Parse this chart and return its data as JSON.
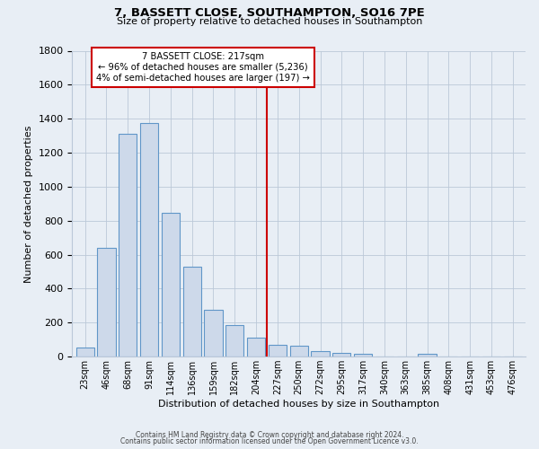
{
  "title": "7, BASSETT CLOSE, SOUTHAMPTON, SO16 7PE",
  "subtitle": "Size of property relative to detached houses in Southampton",
  "xlabel": "Distribution of detached houses by size in Southampton",
  "ylabel": "Number of detached properties",
  "bar_labels": [
    "23sqm",
    "46sqm",
    "68sqm",
    "91sqm",
    "114sqm",
    "136sqm",
    "159sqm",
    "182sqm",
    "204sqm",
    "227sqm",
    "250sqm",
    "272sqm",
    "295sqm",
    "317sqm",
    "340sqm",
    "363sqm",
    "385sqm",
    "408sqm",
    "431sqm",
    "453sqm",
    "476sqm"
  ],
  "bar_values": [
    55,
    640,
    1310,
    1375,
    845,
    530,
    275,
    185,
    110,
    70,
    65,
    35,
    22,
    15,
    0,
    0,
    15,
    0,
    0,
    0,
    0
  ],
  "bar_color": "#cdd9ea",
  "bar_edge_color": "#6096c8",
  "vline_color": "#cc0000",
  "annotation_line1": "7 BASSETT CLOSE: 217sqm",
  "annotation_line2": "← 96% of detached houses are smaller (5,236)",
  "annotation_line3": "4% of semi-detached houses are larger (197) →",
  "annotation_box_edge_color": "#cc0000",
  "ylim": [
    0,
    1800
  ],
  "yticks": [
    0,
    200,
    400,
    600,
    800,
    1000,
    1200,
    1400,
    1600,
    1800
  ],
  "footer_line1": "Contains HM Land Registry data © Crown copyright and database right 2024.",
  "footer_line2": "Contains public sector information licensed under the Open Government Licence v3.0.",
  "bg_color": "#e8eef5",
  "plot_bg_color": "#e8eef5",
  "grid_color": "#bbc8d8"
}
